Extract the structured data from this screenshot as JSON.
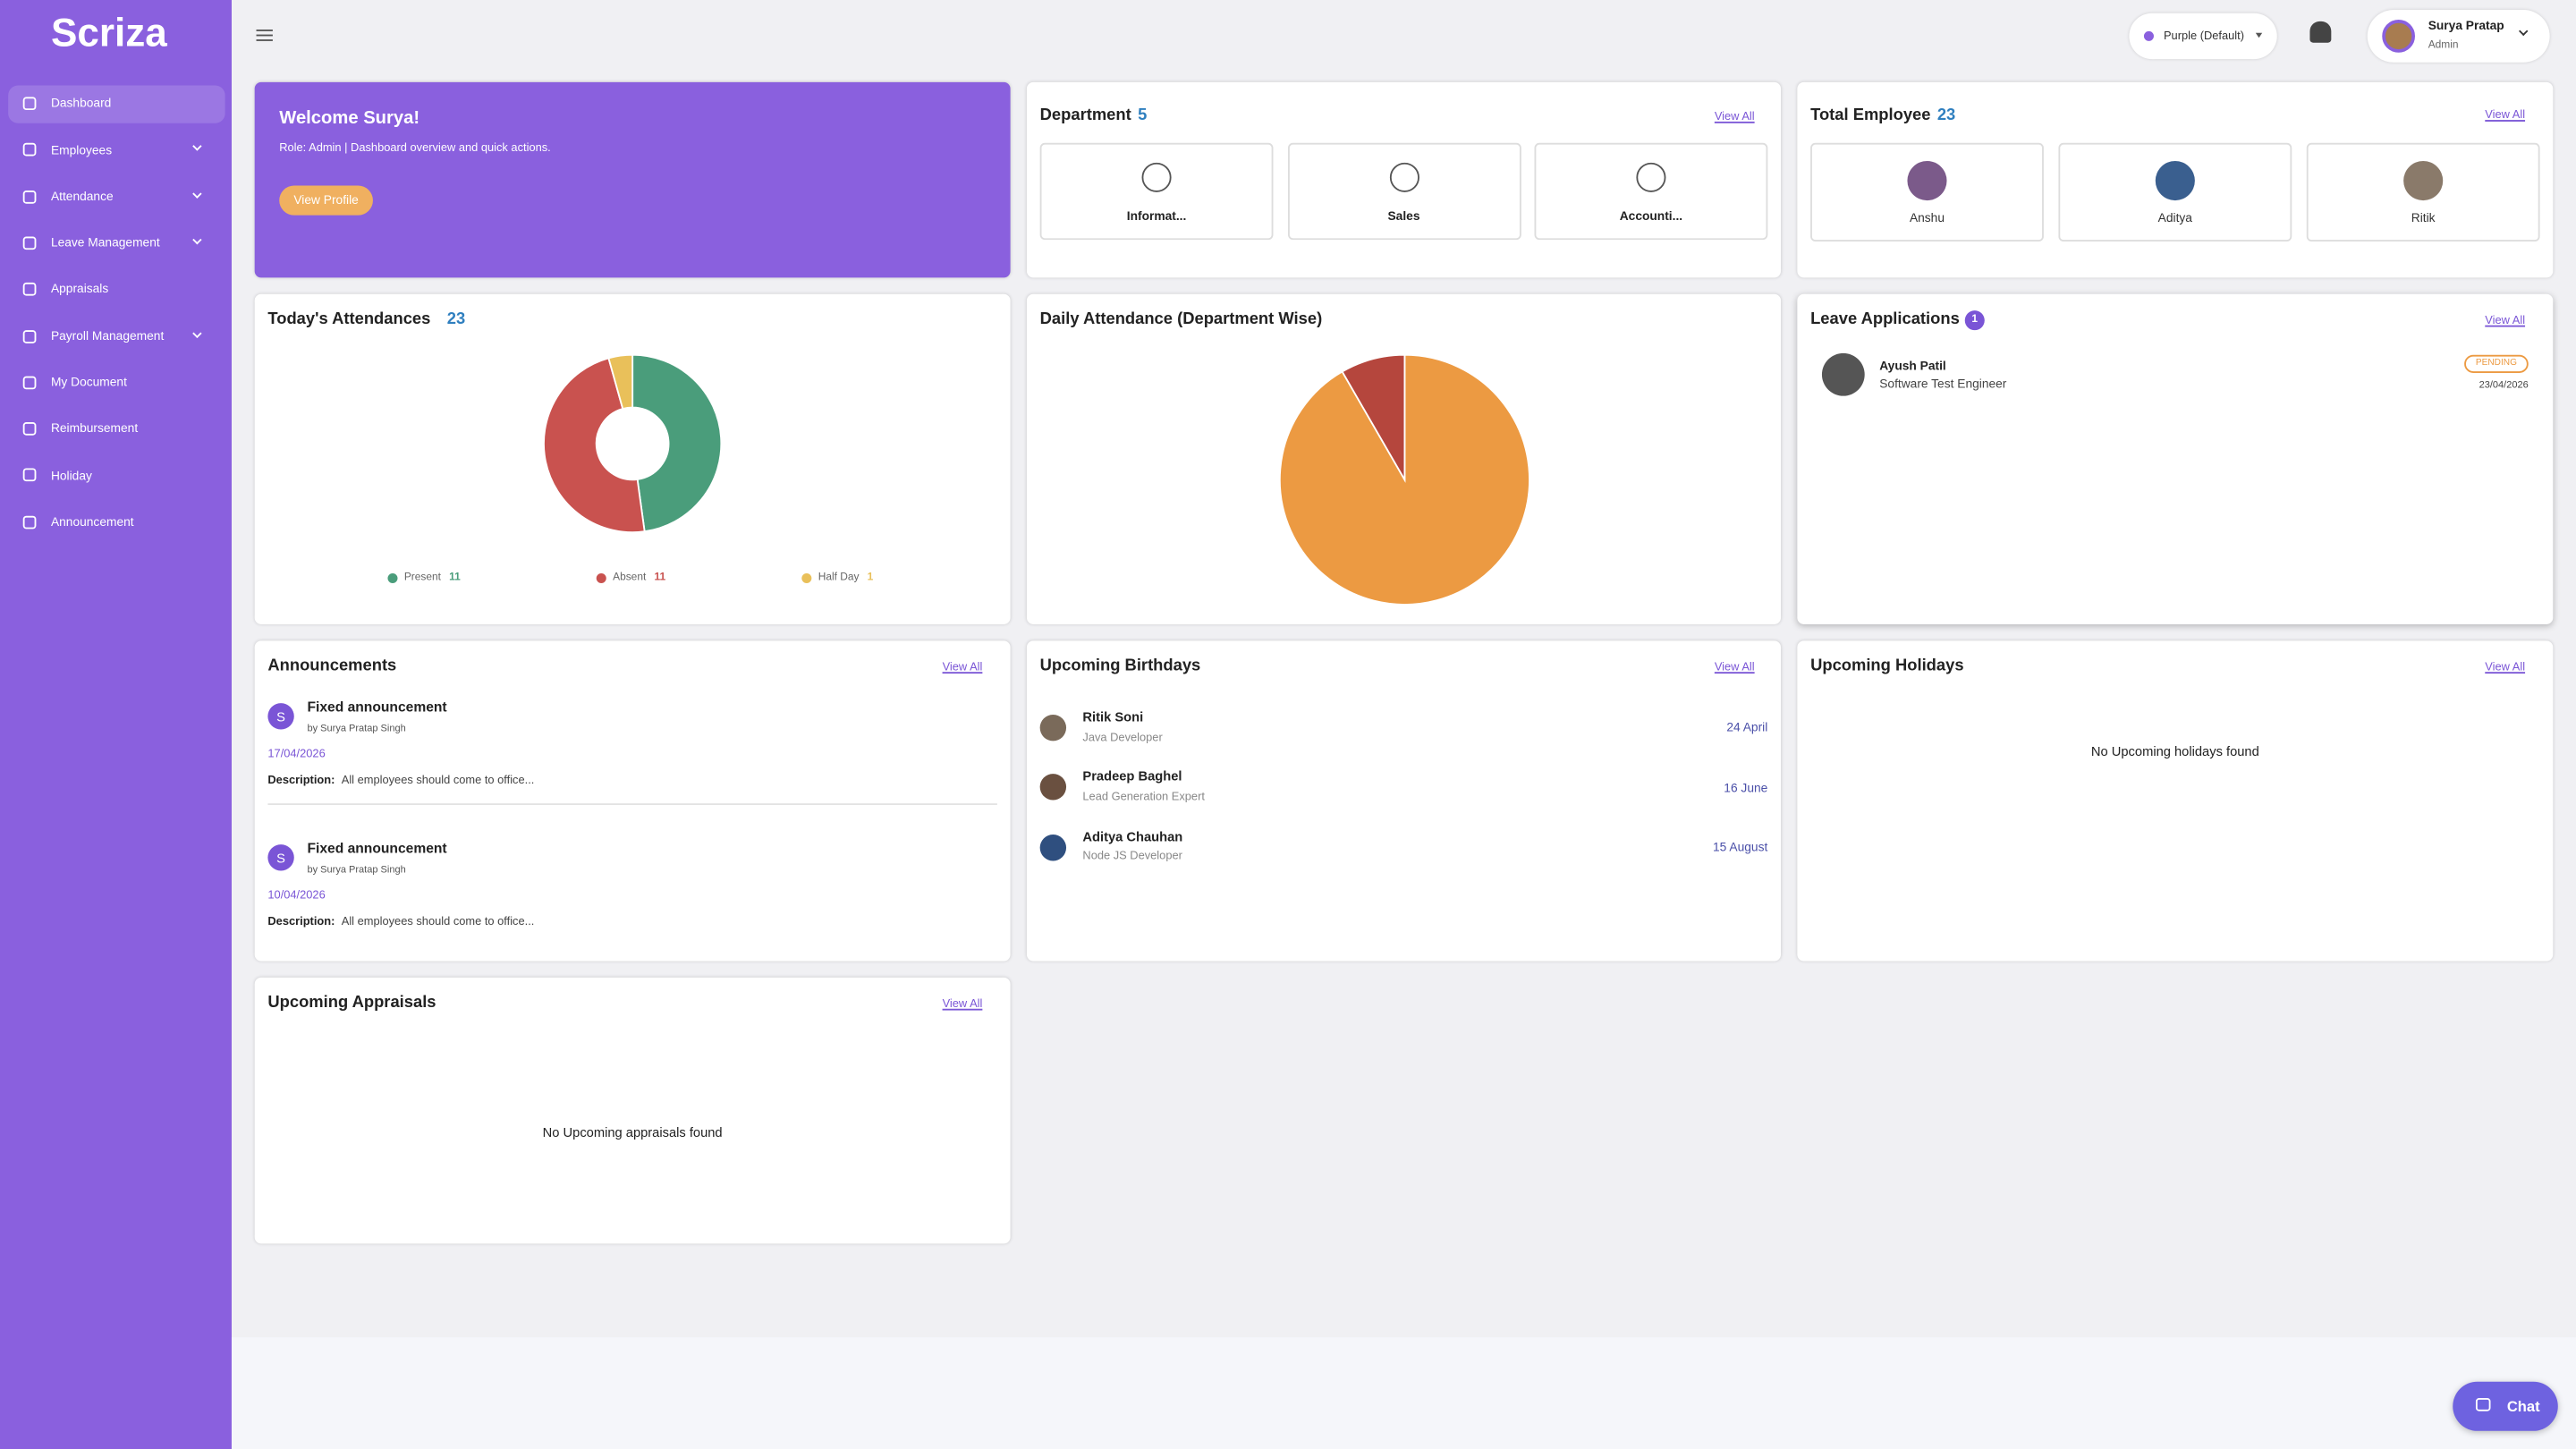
{
  "brand": "Scriza",
  "nav": [
    {
      "label": "Dashboard",
      "active": true
    },
    {
      "label": "Employees",
      "submenu": true
    },
    {
      "label": "Attendance",
      "submenu": true
    },
    {
      "label": "Leave Management",
      "submenu": true
    },
    {
      "label": "Appraisals"
    },
    {
      "label": "Payroll Management",
      "submenu": true
    },
    {
      "label": "My Document"
    },
    {
      "label": "Reimbursement"
    },
    {
      "label": "Holiday"
    },
    {
      "label": "Announcement"
    }
  ],
  "header": {
    "theme": "Purple (Default)",
    "user_name": "Surya Pratap",
    "user_role": "Admin"
  },
  "welcome": {
    "title": "Welcome Surya!",
    "text": "Role: Admin | Dashboard overview and quick actions.",
    "button": "View Profile"
  },
  "department": {
    "title": "Department",
    "count": 5,
    "view_all": "View All",
    "items": [
      "Informat...",
      "Sales",
      "Accounti..."
    ]
  },
  "employees": {
    "title": "Total Employee",
    "count": 23,
    "view_all": "View All",
    "items": [
      "Anshu",
      "Aditya",
      "Ritik"
    ]
  },
  "chart_data": [
    {
      "type": "donut",
      "title": "Today's Attendances",
      "total": 23,
      "categories": [
        "Present",
        "Absent",
        "Half Day"
      ],
      "values": [
        11,
        11,
        1
      ],
      "colors": [
        "#4a9d7b",
        "#c9524f",
        "#e9c05a"
      ]
    },
    {
      "type": "pie",
      "title": "Daily Attendance (Department Wise)",
      "values": [
        11,
        1
      ],
      "colors": [
        "#ec9a42",
        "#b5463d"
      ]
    }
  ],
  "leave": {
    "title": "Leave Applications",
    "count": 1,
    "view_all": "View All",
    "items": [
      {
        "name": "Ayush Patil",
        "role": "Software Test Engineer",
        "status": "PENDING",
        "date": "23/04/2026"
      }
    ]
  },
  "announcements": {
    "title": "Announcements",
    "view_all": "View All",
    "items": [
      {
        "initial": "S",
        "title": "Fixed announcement",
        "by": "by Surya Pratap Singh",
        "date": "17/04/2026",
        "desc_label": "Description:",
        "desc": "All employees should come to office..."
      },
      {
        "initial": "S",
        "title": "Fixed announcement",
        "by": "by Surya Pratap Singh",
        "date": "10/04/2026",
        "desc_label": "Description:",
        "desc": "All employees should come to office..."
      }
    ]
  },
  "birthdays": {
    "title": "Upcoming Birthdays",
    "view_all": "View All",
    "items": [
      {
        "name": "Ritik Soni",
        "role": "Java Developer",
        "date": "24 April"
      },
      {
        "name": "Pradeep Baghel",
        "role": "Lead Generation Expert",
        "date": "16 June"
      },
      {
        "name": "Aditya Chauhan",
        "role": "Node JS Developer",
        "date": "15 August"
      }
    ]
  },
  "holidays": {
    "title": "Upcoming Holidays",
    "view_all": "View All",
    "empty": "No Upcoming holidays found"
  },
  "appraisals": {
    "title": "Upcoming Appraisals",
    "view_all": "View All",
    "empty": "No Upcoming appraisals found"
  },
  "chat": "Chat"
}
